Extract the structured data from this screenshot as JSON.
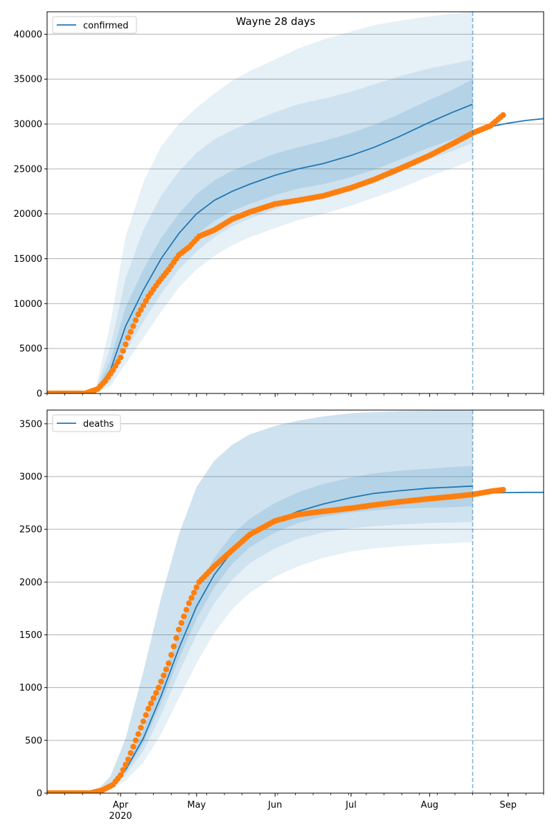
{
  "title": "Wayne 28 days",
  "colors": {
    "band": "#1f77b4",
    "model_line": "#1f77b4",
    "observed": "#ff7f0e",
    "grid": "#b0b0b0",
    "forecast_marker": "#1f77b4"
  },
  "x_axis": {
    "ticks": [
      {
        "date": "2020-04-01",
        "label": "Apr"
      },
      {
        "date": "2020-05-01",
        "label": "May"
      },
      {
        "date": "2020-06-01",
        "label": "Jun"
      },
      {
        "date": "2020-07-01",
        "label": "Jul"
      },
      {
        "date": "2020-08-01",
        "label": "Aug"
      },
      {
        "date": "2020-09-01",
        "label": "Sep"
      }
    ],
    "year_label": "2020",
    "range": [
      "2020-03-03",
      "2020-09-15"
    ],
    "forecast_date": "2020-08-18"
  },
  "chart_data": [
    {
      "type": "line",
      "legend": "confirmed",
      "legend_position": "top-left",
      "grid": "y",
      "ylim": [
        0,
        42500
      ],
      "yticks": [
        0,
        5000,
        10000,
        15000,
        20000,
        25000,
        30000,
        35000,
        40000
      ],
      "model": {
        "x": [
          "2020-03-03",
          "2020-03-22",
          "2020-03-28",
          "2020-04-03",
          "2020-04-10",
          "2020-04-17",
          "2020-04-24",
          "2020-05-01",
          "2020-05-08",
          "2020-05-15",
          "2020-05-22",
          "2020-06-01",
          "2020-06-10",
          "2020-06-20",
          "2020-07-01",
          "2020-07-10",
          "2020-07-20",
          "2020-08-01",
          "2020-08-10",
          "2020-08-18"
        ],
        "y": [
          0,
          100,
          2600,
          7500,
          11500,
          15000,
          17800,
          20000,
          21500,
          22500,
          23300,
          24300,
          25000,
          25600,
          26500,
          27400,
          28600,
          30200,
          31300,
          32200
        ]
      },
      "post_forecast": {
        "x": [
          "2020-08-18",
          "2020-08-25",
          "2020-09-01",
          "2020-09-08",
          "2020-09-15"
        ],
        "y": [
          29100,
          29700,
          30100,
          30400,
          30600
        ]
      },
      "bands": [
        {
          "lower": [
            0,
            50,
            800,
            3300,
            6200,
            9100,
            11800,
            13800,
            15300,
            16500,
            17400,
            18400,
            19300,
            20000,
            20900,
            21800,
            22800,
            24200,
            25100,
            26000
          ],
          "upper": [
            0,
            300,
            7800,
            17500,
            23500,
            27500,
            30000,
            31800,
            33400,
            34800,
            35900,
            37200,
            38400,
            39400,
            40300,
            41000,
            41500,
            42000,
            42300,
            42500
          ]
        },
        {
          "lower": [
            0,
            70,
            1300,
            4700,
            8000,
            11100,
            13800,
            15800,
            17400,
            18600,
            19500,
            20500,
            21300,
            21900,
            22700,
            23500,
            24600,
            26100,
            27000,
            27900
          ],
          "upper": [
            0,
            200,
            5200,
            12800,
            18200,
            22000,
            24700,
            26800,
            28300,
            29300,
            30200,
            31300,
            32200,
            32800,
            33600,
            34400,
            35300,
            36200,
            36700,
            37200
          ]
        },
        {
          "lower": [
            0,
            85,
            1900,
            5900,
            9600,
            13000,
            15600,
            17700,
            19200,
            20300,
            21100,
            22100,
            22800,
            23300,
            24100,
            24900,
            26000,
            27400,
            28300,
            29200
          ],
          "upper": [
            0,
            140,
            3700,
            9600,
            13800,
            17300,
            20000,
            22200,
            23700,
            24800,
            25600,
            26700,
            27400,
            28100,
            29000,
            29900,
            31100,
            32700,
            33800,
            35000
          ]
        }
      ],
      "observed": {
        "x": [
          "2020-03-03",
          "2020-03-10",
          "2020-03-18",
          "2020-03-23",
          "2020-03-26",
          "2020-03-29",
          "2020-04-01",
          "2020-04-04",
          "2020-04-08",
          "2020-04-12",
          "2020-04-16",
          "2020-04-20",
          "2020-04-24",
          "2020-04-28",
          "2020-05-02",
          "2020-05-08",
          "2020-05-15",
          "2020-05-22",
          "2020-06-01",
          "2020-06-10",
          "2020-06-20",
          "2020-07-01",
          "2020-07-10",
          "2020-07-20",
          "2020-08-01",
          "2020-08-10",
          "2020-08-18",
          "2020-08-25",
          "2020-08-30"
        ],
        "y": [
          0,
          0,
          0,
          500,
          1400,
          2600,
          4000,
          6200,
          8800,
          10800,
          12400,
          13800,
          15400,
          16300,
          17500,
          18200,
          19400,
          20200,
          21100,
          21500,
          22000,
          22900,
          23800,
          25000,
          26500,
          27800,
          29000,
          29800,
          31000
        ]
      }
    },
    {
      "type": "line",
      "legend": "deaths",
      "legend_position": "top-left",
      "grid": "y",
      "ylim": [
        0,
        3630
      ],
      "yticks": [
        0,
        500,
        1000,
        1500,
        2000,
        2500,
        3000,
        3500
      ],
      "model": {
        "x": [
          "2020-03-03",
          "2020-03-22",
          "2020-03-28",
          "2020-04-03",
          "2020-04-10",
          "2020-04-17",
          "2020-04-24",
          "2020-05-01",
          "2020-05-08",
          "2020-05-15",
          "2020-05-22",
          "2020-06-01",
          "2020-06-10",
          "2020-06-20",
          "2020-07-01",
          "2020-07-10",
          "2020-07-20",
          "2020-08-01",
          "2020-08-10",
          "2020-08-18"
        ],
        "y": [
          0,
          5,
          70,
          220,
          520,
          920,
          1370,
          1770,
          2070,
          2290,
          2440,
          2580,
          2670,
          2740,
          2800,
          2840,
          2865,
          2890,
          2900,
          2910
        ]
      },
      "post_forecast": {
        "x": [
          "2020-08-18",
          "2020-08-25",
          "2020-09-01",
          "2020-09-08",
          "2020-09-15"
        ],
        "y": [
          2840,
          2845,
          2848,
          2850,
          2850
        ]
      },
      "bands": [
        {
          "lower": [
            0,
            3,
            35,
            120,
            290,
            560,
            900,
            1230,
            1520,
            1740,
            1900,
            2050,
            2150,
            2230,
            2290,
            2320,
            2340,
            2360,
            2370,
            2380
          ],
          "upper": [
            0,
            10,
            160,
            520,
            1150,
            1850,
            2450,
            2900,
            3150,
            3300,
            3400,
            3480,
            3530,
            3570,
            3600,
            3610,
            3620,
            3625,
            3630,
            3630
          ]
        },
        {
          "lower": [
            0,
            4,
            50,
            170,
            400,
            740,
            1140,
            1500,
            1800,
            2020,
            2180,
            2320,
            2410,
            2470,
            2510,
            2530,
            2545,
            2560,
            2565,
            2570
          ]
        },
        {
          "lower": [
            0,
            4,
            60,
            200,
            470,
            850,
            1270,
            1650,
            1950,
            2170,
            2330,
            2470,
            2560,
            2620,
            2660,
            2680,
            2695,
            2705,
            2710,
            2720
          ],
          "upper": [
            0,
            6,
            85,
            250,
            600,
            1050,
            1520,
            1930,
            2230,
            2450,
            2600,
            2750,
            2850,
            2930,
            2990,
            3030,
            3055,
            3075,
            3090,
            3100
          ]
        }
      ],
      "observed": {
        "x": [
          "2020-03-03",
          "2020-03-10",
          "2020-03-20",
          "2020-03-25",
          "2020-03-29",
          "2020-04-01",
          "2020-04-04",
          "2020-04-08",
          "2020-04-12",
          "2020-04-16",
          "2020-04-20",
          "2020-04-24",
          "2020-04-28",
          "2020-05-02",
          "2020-05-08",
          "2020-05-15",
          "2020-05-22",
          "2020-06-01",
          "2020-06-10",
          "2020-06-20",
          "2020-07-01",
          "2020-07-10",
          "2020-07-20",
          "2020-08-01",
          "2020-08-10",
          "2020-08-18",
          "2020-08-25",
          "2020-08-30"
        ],
        "y": [
          0,
          0,
          0,
          30,
          80,
          170,
          320,
          560,
          800,
          1000,
          1230,
          1550,
          1800,
          2000,
          2150,
          2300,
          2450,
          2580,
          2640,
          2670,
          2700,
          2730,
          2760,
          2790,
          2810,
          2830,
          2860,
          2875
        ]
      }
    }
  ]
}
